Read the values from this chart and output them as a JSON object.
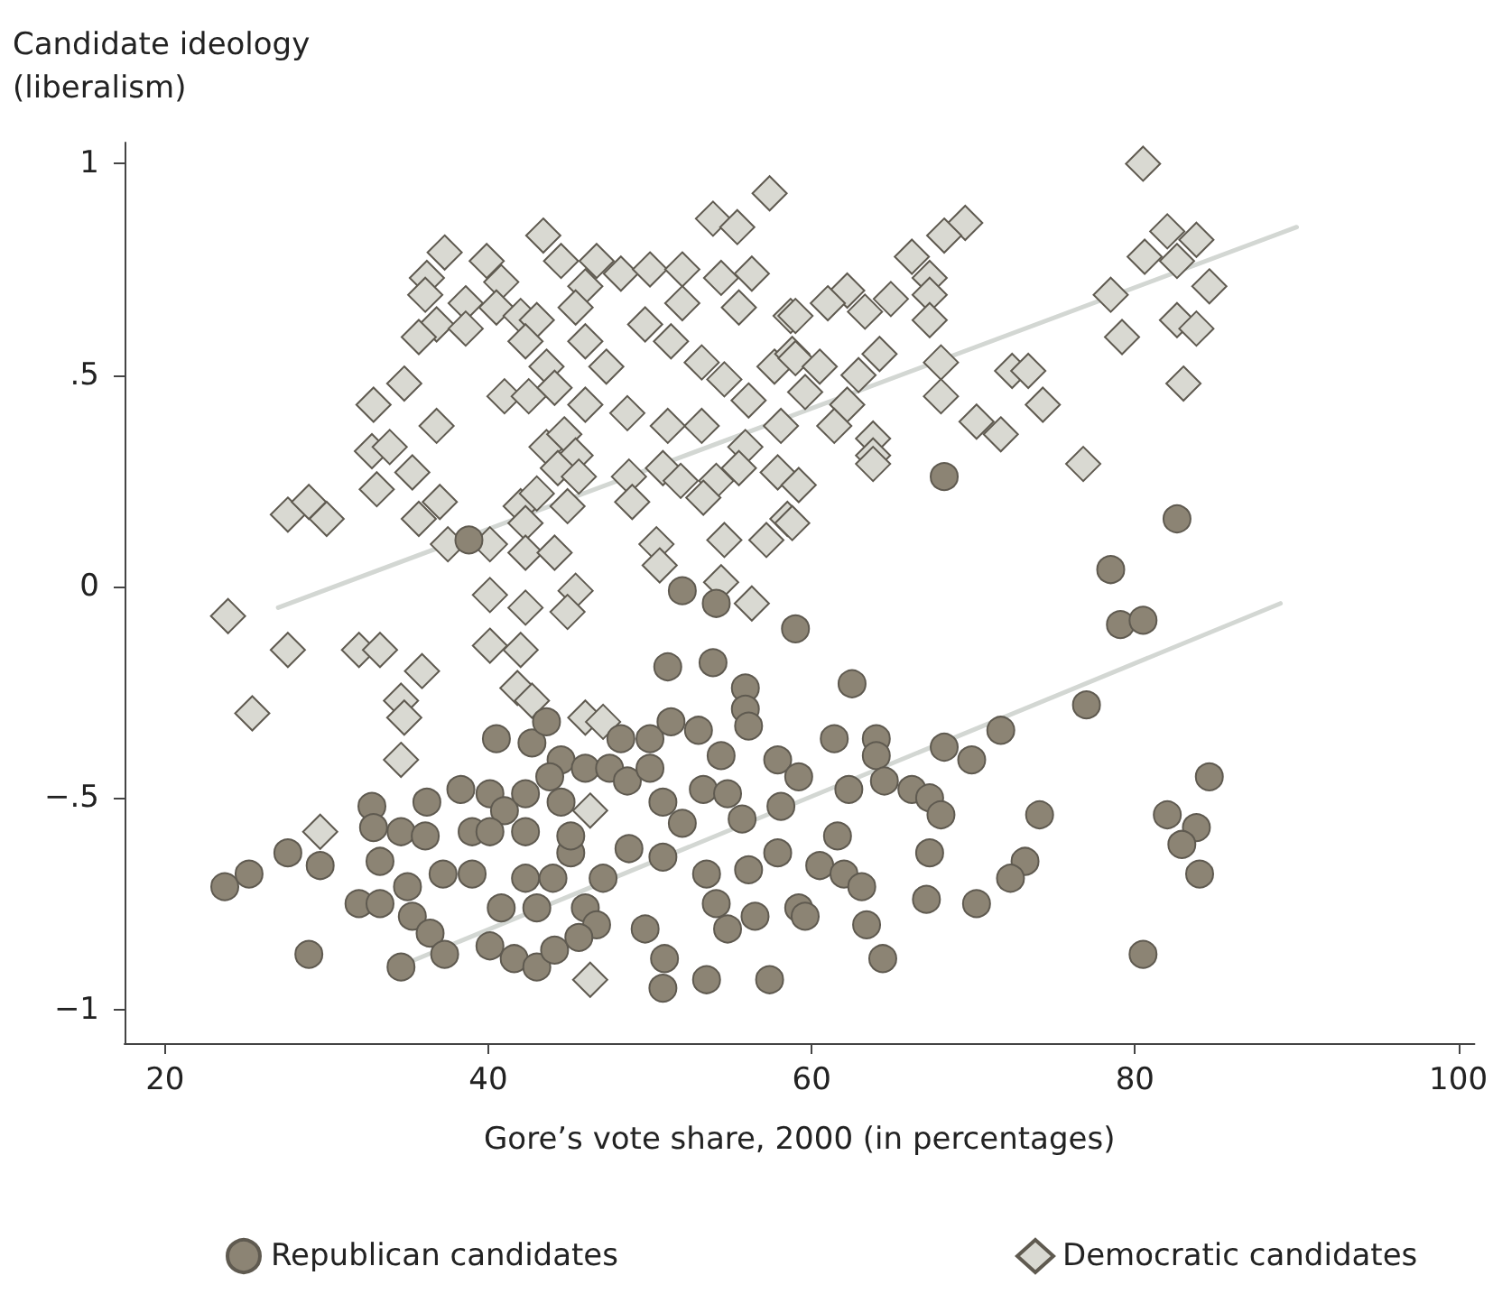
{
  "chart_data": {
    "type": "scatter",
    "ylabel": "Candidate ideology\n(liberalism)",
    "xlabel": "Gore’s vote share, 2000 (in percentages)",
    "xlim": [
      17.5,
      101
    ],
    "xticks": [
      20,
      40,
      60,
      80,
      100
    ],
    "ylim": [
      -1.08,
      1.05
    ],
    "yticks": [
      1,
      {
        "value": 0.5,
        "label": ".5"
      },
      0,
      {
        "value": -0.5,
        "label": "−.5"
      },
      {
        "value": -1,
        "label": "−1"
      }
    ],
    "grid": false,
    "legend": "bottom",
    "series": [
      {
        "name": "Republican candidates",
        "color": "#8c8474",
        "marker": "circle",
        "x": [
          38.8,
          52,
          54.1,
          68.2,
          82.6,
          78.5,
          23.7,
          25.2,
          27.6,
          29.6,
          28.9,
          32,
          33.3,
          32.8,
          32.9,
          34.6,
          36.1,
          33.3,
          36.2,
          35,
          37.2,
          35.3,
          36.4,
          37.3,
          34.6,
          38.3,
          39,
          39,
          40.1,
          40.5,
          41,
          42.3,
          42.7,
          43.6,
          44.5,
          43.8,
          40.1,
          42.3,
          44.5,
          40.1,
          40.8,
          42.3,
          44,
          43,
          41.6,
          43,
          44.1,
          45.1,
          46,
          47.5,
          47.1,
          46,
          46.7,
          45.6,
          45.1,
          48.2,
          48.6,
          50,
          50,
          51.3,
          53,
          50.8,
          48.7,
          50.8,
          52,
          49.7,
          50.9,
          50.8,
          53.5,
          57.4,
          51.1,
          53.9,
          55.9,
          55.9,
          56.1,
          54.4,
          53.3,
          54.8,
          55.7,
          53.5,
          56.1,
          54.1,
          54.8,
          56.5,
          57.9,
          58.1,
          57.9,
          59,
          59.2,
          59.2,
          62.5,
          61.4,
          64,
          64,
          62.3,
          64.5,
          66.2,
          67.3,
          68,
          68.2,
          69.9,
          71.7,
          77,
          79.1,
          80.5,
          74.1,
          84.6,
          82,
          83.8,
          82.9,
          84,
          80.5,
          61.6,
          60.5,
          62,
          63.1,
          59.6,
          63.4,
          64.4,
          67.3,
          67.1,
          70.2,
          73.2,
          72.3
        ],
        "values": [
          0.11,
          -0.01,
          -0.04,
          0.26,
          0.16,
          0.04,
          -0.71,
          -0.68,
          -0.63,
          -0.66,
          -0.87,
          -0.75,
          -0.75,
          -0.52,
          -0.57,
          -0.58,
          -0.59,
          -0.65,
          -0.51,
          -0.71,
          -0.68,
          -0.78,
          -0.82,
          -0.87,
          -0.9,
          -0.48,
          -0.58,
          -0.68,
          -0.49,
          -0.36,
          -0.53,
          -0.49,
          -0.37,
          -0.32,
          -0.41,
          -0.45,
          -0.58,
          -0.58,
          -0.51,
          -0.85,
          -0.76,
          -0.69,
          -0.69,
          -0.76,
          -0.88,
          -0.9,
          -0.86,
          -0.63,
          -0.43,
          -0.43,
          -0.69,
          -0.76,
          -0.8,
          -0.83,
          -0.59,
          -0.36,
          -0.46,
          -0.43,
          -0.36,
          -0.32,
          -0.34,
          -0.51,
          -0.62,
          -0.64,
          -0.56,
          -0.81,
          -0.88,
          -0.95,
          -0.93,
          -0.93,
          -0.19,
          -0.18,
          -0.24,
          -0.29,
          -0.33,
          -0.4,
          -0.48,
          -0.49,
          -0.55,
          -0.68,
          -0.67,
          -0.75,
          -0.81,
          -0.78,
          -0.41,
          -0.52,
          -0.63,
          -0.1,
          -0.76,
          -0.45,
          -0.23,
          -0.36,
          -0.36,
          -0.4,
          -0.48,
          -0.46,
          -0.48,
          -0.5,
          -0.54,
          -0.38,
          -0.41,
          -0.34,
          -0.28,
          -0.09,
          -0.08,
          -0.54,
          -0.45,
          -0.54,
          -0.57,
          -0.61,
          -0.68,
          -0.87,
          -0.59,
          -0.66,
          -0.68,
          -0.71,
          -0.78,
          -0.8,
          -0.88,
          -0.63,
          -0.74,
          -0.75,
          -0.65,
          -0.69
        ]
      },
      {
        "name": "Democratic candidates",
        "color": "#d9d9d2",
        "marker": "diamond",
        "x": [
          57.4,
          53.9,
          55.4,
          37.3,
          43.4,
          44.5,
          39.9,
          36.2,
          36.1,
          40.8,
          46.7,
          48.2,
          50,
          52,
          54.4,
          56.3,
          46,
          38.6,
          40.5,
          42,
          43,
          45.4,
          52,
          55.5,
          58.7,
          36.8,
          35.7,
          38.6,
          42.3,
          46,
          49.7,
          51.3,
          43.6,
          47.3,
          53.2,
          54.6,
          57.7,
          58.8,
          34.8,
          32.9,
          36.8,
          41,
          42.5,
          44.1,
          46,
          48.6,
          51.1,
          53.2,
          56.1,
          58.1,
          32.8,
          33.9,
          35.3,
          33.1,
          43.6,
          44.7,
          45.4,
          44.3,
          45.6,
          48.7,
          50.8,
          51.9,
          54.1,
          55.9,
          55.5,
          57.9,
          53.3,
          35.7,
          37,
          27.6,
          28.9,
          30,
          42,
          43,
          42.3,
          44.9,
          48.9,
          37.5,
          40.1,
          42.3,
          44.1,
          50.4,
          50.6,
          54.6,
          57.2,
          58.5,
          40.1,
          42.3,
          45.4,
          54.4,
          56.3,
          23.9,
          80.5,
          69.5,
          68.2,
          66.2,
          67.3,
          67.3,
          67.3,
          64.9,
          62.2,
          61,
          63.3,
          59,
          82,
          83.8,
          80.6,
          82.6,
          78.5,
          84.6,
          82.6,
          83.8,
          79.2,
          83,
          59,
          60.5,
          59.6,
          64.2,
          62.9,
          62.2,
          61.4,
          68,
          68,
          72.4,
          73.4,
          74.3,
          70.2,
          71.7,
          63.8,
          63.8,
          63.8,
          59.2,
          58.8,
          76.8,
          27.6,
          25.4,
          32,
          33.3,
          35.9,
          34.6,
          34.8,
          34.6,
          40.1,
          42,
          41.8,
          42.7,
          46,
          47.1,
          44.9,
          29.6,
          46.3,
          46.3
        ],
        "values": [
          0.93,
          0.87,
          0.85,
          0.79,
          0.83,
          0.77,
          0.77,
          0.73,
          0.69,
          0.72,
          0.77,
          0.74,
          0.75,
          0.75,
          0.73,
          0.74,
          0.71,
          0.67,
          0.66,
          0.64,
          0.63,
          0.66,
          0.67,
          0.66,
          0.64,
          0.62,
          0.59,
          0.61,
          0.58,
          0.58,
          0.62,
          0.58,
          0.52,
          0.52,
          0.53,
          0.49,
          0.52,
          0.55,
          0.48,
          0.43,
          0.38,
          0.45,
          0.45,
          0.47,
          0.43,
          0.41,
          0.38,
          0.38,
          0.44,
          0.38,
          0.32,
          0.33,
          0.27,
          0.23,
          0.33,
          0.36,
          0.31,
          0.28,
          0.26,
          0.26,
          0.28,
          0.25,
          0.25,
          0.33,
          0.28,
          0.27,
          0.21,
          0.16,
          0.2,
          0.17,
          0.2,
          0.16,
          0.19,
          0.22,
          0.15,
          0.19,
          0.2,
          0.1,
          0.1,
          0.08,
          0.08,
          0.1,
          0.05,
          0.11,
          0.11,
          0.16,
          -0.02,
          -0.05,
          -0.01,
          0.01,
          -0.04,
          -0.07,
          1.0,
          0.86,
          0.83,
          0.78,
          0.73,
          0.69,
          0.63,
          0.68,
          0.7,
          0.67,
          0.65,
          0.64,
          0.84,
          0.82,
          0.78,
          0.77,
          0.69,
          0.71,
          0.63,
          0.61,
          0.59,
          0.48,
          0.54,
          0.52,
          0.46,
          0.55,
          0.5,
          0.43,
          0.38,
          0.53,
          0.45,
          0.51,
          0.51,
          0.43,
          0.39,
          0.36,
          0.35,
          0.31,
          0.29,
          0.24,
          0.15,
          0.29,
          -0.15,
          -0.3,
          -0.15,
          -0.15,
          -0.2,
          -0.27,
          -0.31,
          -0.41,
          -0.14,
          -0.15,
          -0.24,
          -0.27,
          -0.31,
          -0.32,
          -0.06,
          -0.58,
          -0.53,
          -0.93
        ]
      },
      {
        "type": "line",
        "color": "#d3d7d3",
        "marker": "none",
        "x": [
          27,
          90
        ],
        "values": [
          -0.05,
          0.85
        ]
      },
      {
        "type": "line",
        "color": "#d3d7d3",
        "marker": "none",
        "x": [
          35,
          89
        ],
        "values": [
          -0.89,
          -0.04
        ]
      }
    ]
  }
}
